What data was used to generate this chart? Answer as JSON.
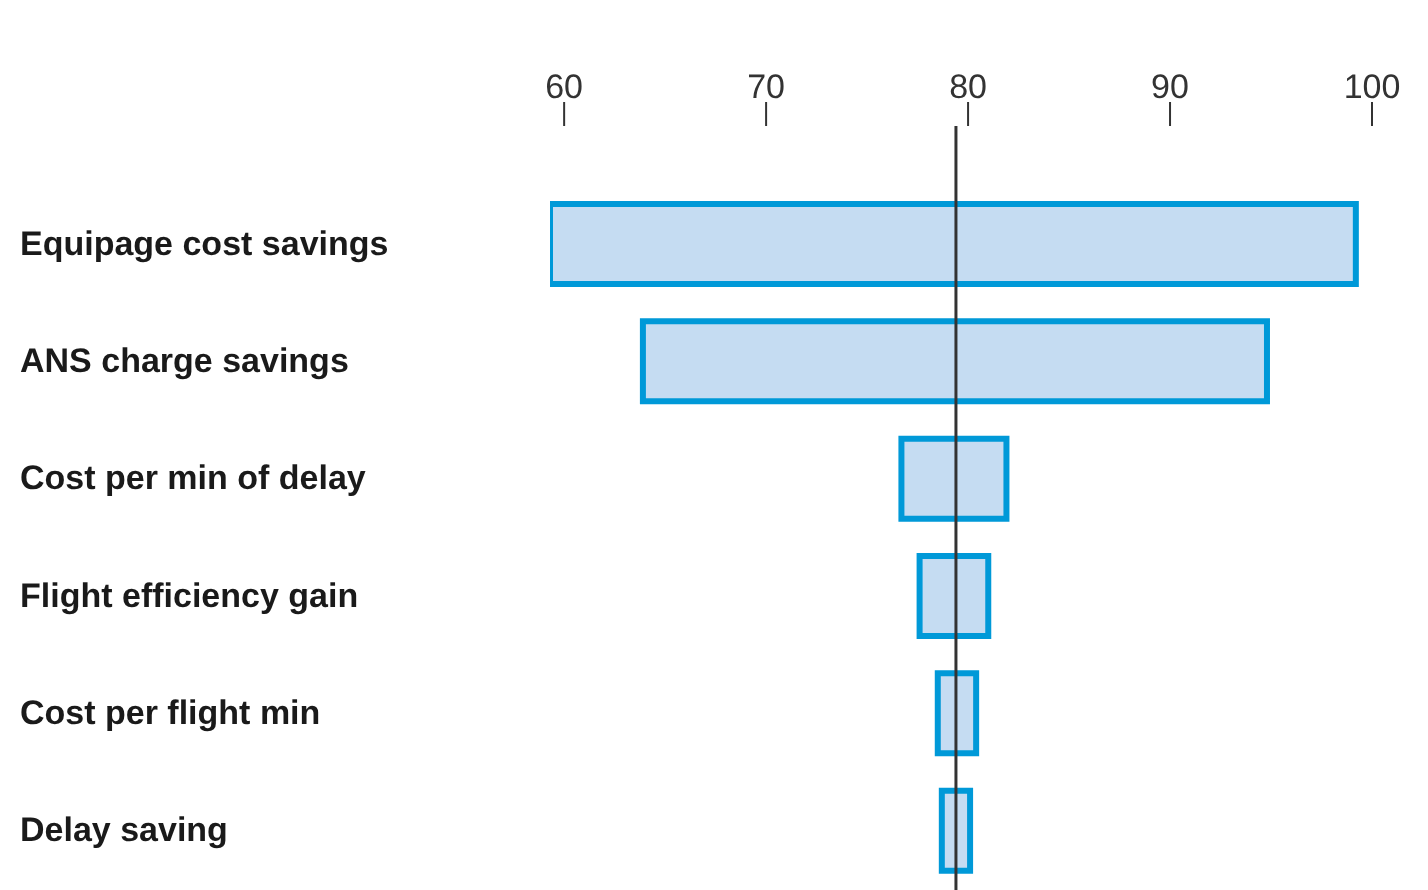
{
  "chart_data": {
    "type": "bar",
    "orientation": "horizontal",
    "categories": [
      "Equipage cost savings",
      "ANS charge savings",
      "Cost per min of delay",
      "Flight efficiency gain",
      "Cost per flight min",
      "Delay saving"
    ],
    "base": [
      59.3,
      63.9,
      76.7,
      77.6,
      78.5,
      78.7
    ],
    "values": [
      39.9,
      30.9,
      5.2,
      3.4,
      1.9,
      1.4
    ],
    "color": "#c5dcf2",
    "xlim": [
      59.3,
      100
    ],
    "xticks": [
      60,
      70,
      80,
      90,
      100
    ],
    "ref_lines": [
      {
        "axis": "x",
        "value": 79.4,
        "color": "#333333"
      }
    ],
    "grid": false
  }
}
